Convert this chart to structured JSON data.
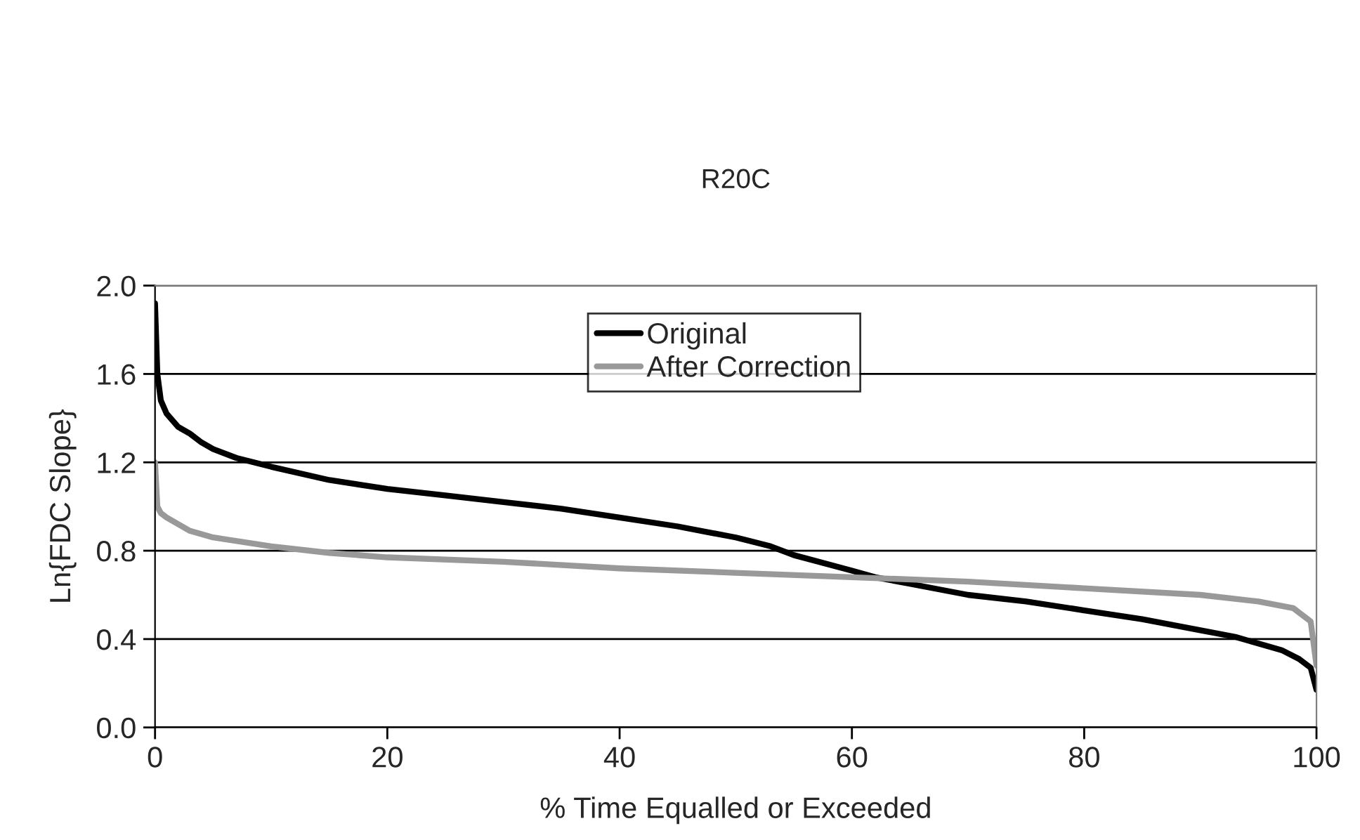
{
  "chart_data": {
    "type": "line",
    "title": "R20C",
    "xlabel": "% Time Equalled or Exceeded",
    "ylabel": "Ln{FDC Slope}",
    "xlim": [
      0,
      100
    ],
    "xticks": [
      0,
      20,
      40,
      60,
      80,
      100
    ],
    "ylim": [
      0.0,
      2.0
    ],
    "yticks": [
      {
        "value": 0.0,
        "label": "0.0"
      },
      {
        "value": 0.4,
        "label": "0.4"
      },
      {
        "value": 0.8,
        "label": "0.8"
      },
      {
        "value": 1.2,
        "label": "1.2"
      },
      {
        "value": 1.6,
        "label": "1.6"
      },
      {
        "value": 2.0,
        "label": "2.0"
      }
    ],
    "grid": "y",
    "legend": "top",
    "marker": "none",
    "line_style": "solid",
    "series": [
      {
        "name": "Original",
        "color": "#000000",
        "x": [
          0,
          0.2,
          0.5,
          1,
          2,
          3,
          4,
          5,
          7,
          10,
          15,
          20,
          25,
          30,
          35,
          40,
          45,
          50,
          53,
          55,
          60,
          62,
          65,
          70,
          75,
          80,
          85,
          90,
          93,
          95,
          97,
          98.5,
          99.5,
          100
        ],
        "values": [
          1.92,
          1.6,
          1.48,
          1.42,
          1.36,
          1.33,
          1.29,
          1.26,
          1.22,
          1.18,
          1.12,
          1.08,
          1.05,
          1.02,
          0.99,
          0.95,
          0.91,
          0.86,
          0.82,
          0.78,
          0.71,
          0.68,
          0.65,
          0.6,
          0.57,
          0.53,
          0.49,
          0.44,
          0.41,
          0.38,
          0.35,
          0.31,
          0.27,
          0.17
        ]
      },
      {
        "name": "After Correction",
        "color": "#999999",
        "x": [
          0,
          0.2,
          0.5,
          1,
          2,
          3,
          5,
          10,
          15,
          20,
          30,
          40,
          50,
          60,
          70,
          80,
          90,
          95,
          98,
          99.5,
          100
        ],
        "values": [
          1.2,
          1.0,
          0.97,
          0.95,
          0.92,
          0.89,
          0.86,
          0.82,
          0.79,
          0.77,
          0.75,
          0.72,
          0.7,
          0.68,
          0.66,
          0.63,
          0.6,
          0.57,
          0.54,
          0.48,
          0.28
        ]
      }
    ]
  }
}
